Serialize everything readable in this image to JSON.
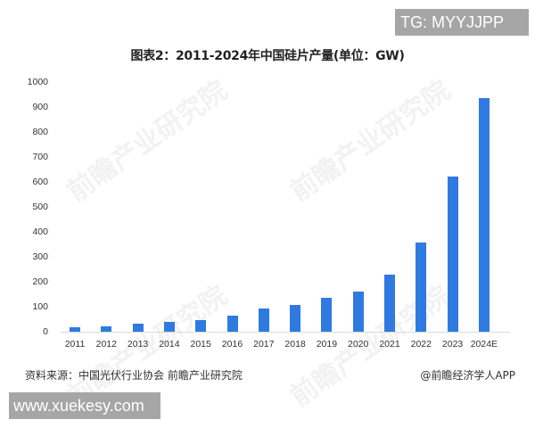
{
  "badge_top": "TG: MYYJJPP",
  "badge_bottom": "www.xuekesy.com",
  "watermark_text": "前瞻产业研究院",
  "footer": {
    "source": "资料来源：中国光伏行业协会 前瞻产业研究院",
    "credit": "@前瞻经济学人APP"
  },
  "colors": {
    "bar": "#2f7ae0"
  },
  "chart_data": {
    "type": "bar",
    "title": "图表2：2011-2024年中国硅片产量(单位：GW)",
    "xlabel": "",
    "ylabel": "",
    "ylim": [
      0,
      1000
    ],
    "yticks": [
      "0",
      "100",
      "200",
      "300",
      "400",
      "500",
      "600",
      "700",
      "800",
      "900",
      "1000"
    ],
    "grid": false,
    "legend": null,
    "categories": [
      "2011",
      "2012",
      "2013",
      "2014",
      "2015",
      "2016",
      "2017",
      "2018",
      "2019",
      "2020",
      "2021",
      "2022",
      "2023",
      "2024E"
    ],
    "values": [
      19,
      22,
      31,
      38,
      48,
      65,
      92,
      106,
      134,
      161,
      227,
      357,
      622,
      935
    ]
  }
}
